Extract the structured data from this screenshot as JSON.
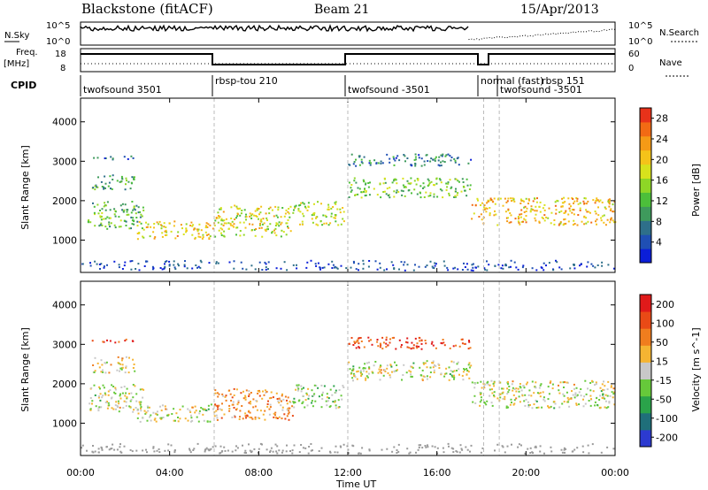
{
  "header": {
    "station": "Blackstone (fitACF)",
    "beam": "Beam 21",
    "date": "15/Apr/2013"
  },
  "noise_panel": {
    "left_label": "N.Sky",
    "right_label": "N.Search",
    "left_ticks": [
      "10^5",
      "10^0"
    ],
    "right_ticks": [
      "10^5",
      "10^0"
    ]
  },
  "freq_panel": {
    "left_label_1": "Freq.",
    "left_label_2": "[MHz]",
    "left_ticks": [
      "18",
      "8"
    ],
    "right_label": "Nave",
    "right_ticks": [
      "60",
      "0"
    ]
  },
  "cpid": {
    "label": "CPID",
    "segments": [
      "twofsound 3501",
      "rbsp-tou 210",
      "twofsound -3501",
      "normal (fast)",
      "rbsp 151",
      "twofsound -3501"
    ]
  },
  "colors": {
    "power_scale": [
      "#0b1ed8",
      "#1f4fb4",
      "#2e6f8a",
      "#3e9a5c",
      "#4cbf3a",
      "#8ed626",
      "#d8e21c",
      "#f5c319",
      "#f59a16",
      "#f26a14",
      "#e8321a"
    ],
    "velocity_scale": [
      "#2c3ad0",
      "#1f6f7a",
      "#2aa34a",
      "#66c93a",
      "#c8c8c8",
      "#f5b432",
      "#f07d1e",
      "#e94a16",
      "#e01a1a"
    ]
  },
  "chart_data": [
    {
      "type": "heatmap",
      "title": "Power",
      "xlabel": "Time UT",
      "ylabel": "Slant Range [km]",
      "x_ticks": [
        "00:00",
        "04:00",
        "08:00",
        "12:00",
        "16:00",
        "20:00",
        "00:00"
      ],
      "x_range_hours": [
        0,
        24
      ],
      "y_ticks": [
        "1000",
        "2000",
        "3000",
        "4000"
      ],
      "y_range_km": [
        180,
        4600
      ],
      "colorbar_label": "Power [dB]",
      "colorbar_ticks": [
        "4",
        "8",
        "12",
        "16",
        "20",
        "24",
        "28"
      ],
      "colorbar_range": [
        0,
        30
      ],
      "scatter_bands": [
        {
          "t0": 0.3,
          "t1": 2.8,
          "r0": 1300,
          "r1": 2000,
          "level": 0.4
        },
        {
          "t0": 0.5,
          "t1": 2.4,
          "r0": 2300,
          "r1": 2700,
          "level": 0.35
        },
        {
          "t0": 0.5,
          "t1": 2.4,
          "r0": 3050,
          "r1": 3150,
          "level": 0.2
        },
        {
          "t0": 2.5,
          "t1": 6.0,
          "r0": 1050,
          "r1": 1500,
          "level": 0.65
        },
        {
          "t0": 6.0,
          "t1": 9.5,
          "r0": 1100,
          "r1": 1900,
          "level": 0.6
        },
        {
          "t0": 9.5,
          "t1": 11.8,
          "r0": 1400,
          "r1": 2000,
          "level": 0.55
        },
        {
          "t0": 12.0,
          "t1": 17.5,
          "r0": 2100,
          "r1": 2600,
          "level": 0.45
        },
        {
          "t0": 12.0,
          "t1": 17.5,
          "r0": 2900,
          "r1": 3200,
          "level": 0.25
        },
        {
          "t0": 17.5,
          "t1": 24.0,
          "r0": 1400,
          "r1": 2100,
          "level": 0.7
        }
      ]
    },
    {
      "type": "heatmap",
      "title": "Velocity",
      "xlabel": "Time UT",
      "ylabel": "Slant Range [km]",
      "x_ticks": [
        "00:00",
        "04:00",
        "08:00",
        "12:00",
        "16:00",
        "20:00",
        "00:00"
      ],
      "x_range_hours": [
        0,
        24
      ],
      "y_ticks": [
        "1000",
        "2000",
        "3000",
        "4000"
      ],
      "y_range_km": [
        180,
        4600
      ],
      "colorbar_label": "Velocity [m s^-1]",
      "colorbar_ticks": [
        "200",
        "100",
        "50",
        "15",
        "-15",
        "-50",
        "-100",
        "-200"
      ],
      "colorbar_range": [
        -250,
        250
      ],
      "scatter_bands": [
        {
          "t0": 0.3,
          "t1": 2.8,
          "r0": 1300,
          "r1": 2000,
          "level": 0.5
        },
        {
          "t0": 0.5,
          "t1": 2.4,
          "r0": 2300,
          "r1": 2700,
          "level": 0.55
        },
        {
          "t0": 0.5,
          "t1": 2.4,
          "r0": 3050,
          "r1": 3150,
          "level": 0.9
        },
        {
          "t0": 2.5,
          "t1": 6.0,
          "r0": 1050,
          "r1": 1500,
          "level": 0.5
        },
        {
          "t0": 6.0,
          "t1": 9.5,
          "r0": 1100,
          "r1": 1900,
          "level": 0.68
        },
        {
          "t0": 9.5,
          "t1": 11.8,
          "r0": 1400,
          "r1": 2000,
          "level": 0.4
        },
        {
          "t0": 12.0,
          "t1": 17.5,
          "r0": 2100,
          "r1": 2600,
          "level": 0.5
        },
        {
          "t0": 12.0,
          "t1": 17.5,
          "r0": 2900,
          "r1": 3200,
          "level": 0.85
        },
        {
          "t0": 17.5,
          "t1": 24.0,
          "r0": 1400,
          "r1": 2100,
          "level": 0.5
        }
      ]
    }
  ]
}
